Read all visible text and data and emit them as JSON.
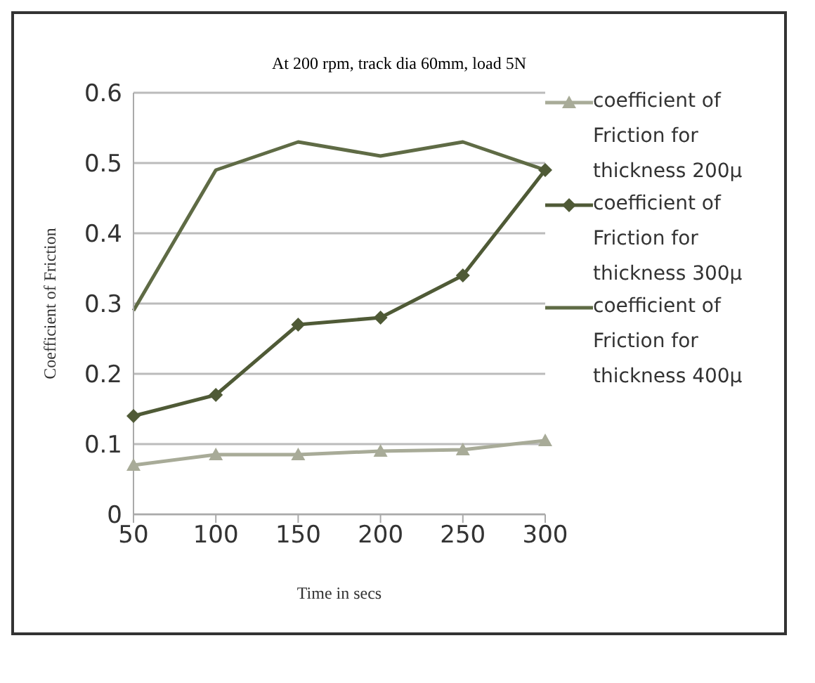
{
  "chart_data": {
    "type": "line",
    "title": "At 200 rpm, track dia 60mm, load 5N",
    "xlabel": "Time in secs",
    "ylabel": "Coefficient of Friction",
    "categories": [
      "50",
      "100",
      "150",
      "200",
      "250",
      "300"
    ],
    "series": [
      {
        "name": "coefficient of Friction for thickness 200μ",
        "color": "#a8ab98",
        "marker": "triangle",
        "values": [
          0.07,
          0.085,
          0.085,
          0.09,
          0.092,
          0.105
        ]
      },
      {
        "name": "coefficient of Friction for thickness 300μ",
        "color": "#4f5a36",
        "marker": "diamond",
        "values": [
          0.14,
          0.17,
          0.27,
          0.28,
          0.34,
          0.49
        ]
      },
      {
        "name": "coefficient of Friction for thickness 400μ",
        "color": "#5f6b45",
        "marker": "none",
        "values": [
          0.29,
          0.49,
          0.53,
          0.51,
          0.53,
          0.49
        ]
      }
    ],
    "ylim": [
      0,
      0.6
    ],
    "yticks": [
      0,
      0.1,
      0.2,
      0.3,
      0.4,
      0.5,
      0.6
    ],
    "grid": "y",
    "legend": "right",
    "line_style": "solid"
  }
}
